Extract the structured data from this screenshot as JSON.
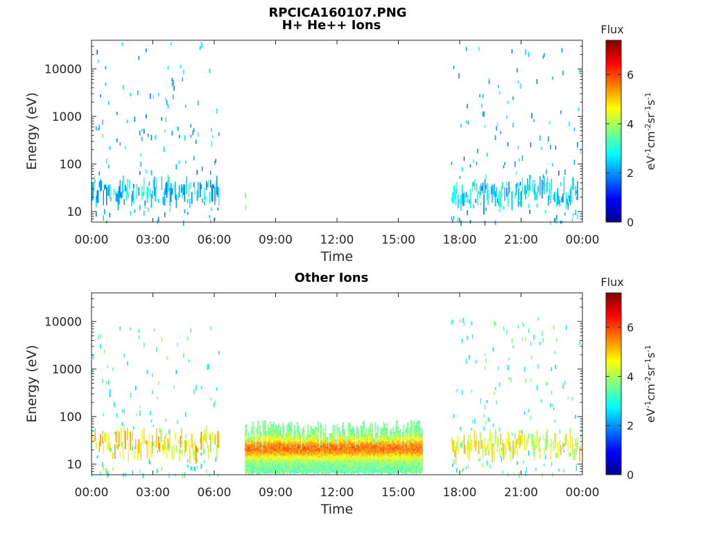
{
  "figure": {
    "title": "RPCICA160107.PNG",
    "colors": {
      "axis": "#262626",
      "background": "#ffffff"
    }
  },
  "chart_data": [
    {
      "type": "heatmap",
      "title": "H+ He++ Ions",
      "xlabel": "Time",
      "ylabel": "Energy (eV)",
      "x_ticks": [
        "00:00",
        "03:00",
        "06:00",
        "09:00",
        "12:00",
        "15:00",
        "18:00",
        "21:00",
        "00:00"
      ],
      "y_scale": "log",
      "y_ticks": [
        "10",
        "100",
        "1000",
        "10000"
      ],
      "ylim": [
        6,
        40000
      ],
      "colorbar": {
        "title": "Flux",
        "unit": "eV-1cm-2sr-1s-1",
        "ticks": [
          "0",
          "2",
          "4",
          "6"
        ],
        "range": [
          0,
          7.4
        ],
        "colormap": "jet"
      },
      "data_segments": [
        {
          "start": "00:00",
          "end": "06:15",
          "energy_range": [
            6,
            40000
          ],
          "typical_flux": 2.2,
          "peak_band_eV": [
            15,
            40
          ],
          "peak_flux": 3.3
        },
        {
          "start": "07:30",
          "end": "07:35",
          "energy_range": [
            12,
            25
          ],
          "typical_flux": 3.8
        },
        {
          "start": "17:35",
          "end": "23:55",
          "energy_range": [
            6,
            30000
          ],
          "typical_flux": 2.2,
          "peak_band_eV": [
            15,
            40
          ],
          "peak_flux": 3.3
        }
      ],
      "grid": false
    },
    {
      "type": "heatmap",
      "title": "Other Ions",
      "xlabel": "Time",
      "ylabel": "Energy (eV)",
      "x_ticks": [
        "00:00",
        "03:00",
        "06:00",
        "09:00",
        "12:00",
        "15:00",
        "18:00",
        "21:00",
        "00:00"
      ],
      "y_scale": "log",
      "y_ticks": [
        "10",
        "100",
        "1000",
        "10000"
      ],
      "ylim": [
        6,
        40000
      ],
      "colorbar": {
        "title": "Flux",
        "unit": "eV-1cm-2sr-1s-1",
        "ticks": [
          "0",
          "2",
          "4",
          "6"
        ],
        "range": [
          0,
          7.4
        ],
        "colormap": "jet"
      },
      "data_segments": [
        {
          "start": "00:00",
          "end": "06:15",
          "energy_range": [
            6,
            10000
          ],
          "typical_flux": 3.0,
          "peak_band_eV": [
            15,
            45
          ],
          "peak_flux": 5.5
        },
        {
          "start": "07:30",
          "end": "16:10",
          "energy_range": [
            6,
            80
          ],
          "typical_flux": 5.0,
          "peak_band_eV": [
            12,
            35
          ],
          "peak_flux": 6.3
        },
        {
          "start": "17:35",
          "end": "23:55",
          "energy_range": [
            6,
            12000
          ],
          "typical_flux": 3.0,
          "peak_band_eV": [
            15,
            40
          ],
          "peak_flux": 5.3
        }
      ],
      "grid": false
    }
  ]
}
